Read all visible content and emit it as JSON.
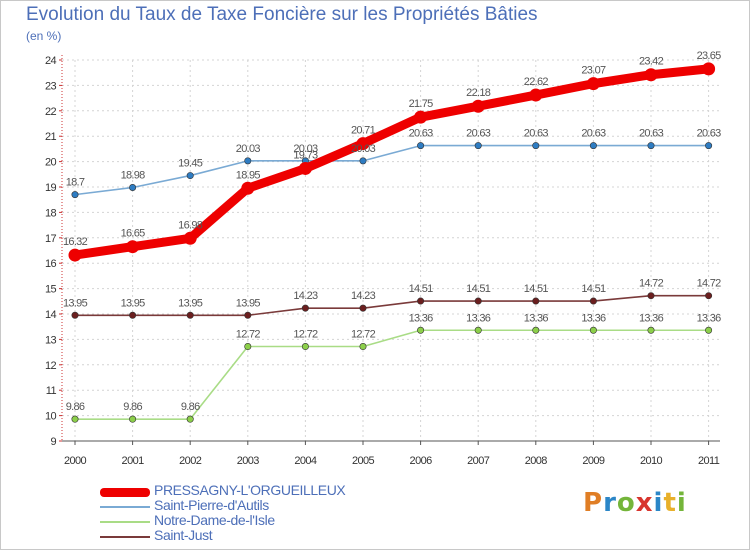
{
  "chart_data": {
    "type": "line",
    "title": "Evolution du Taux de Taxe Foncière sur les Propriétés Bâties",
    "unit_label": "(en %)",
    "x": [
      "2000",
      "2001",
      "2002",
      "2003",
      "2004",
      "2005",
      "2006",
      "2007",
      "2008",
      "2009",
      "2010",
      "2011"
    ],
    "ylim": [
      9,
      24
    ],
    "yticks": [
      "9",
      "10",
      "11",
      "12",
      "13",
      "14",
      "15",
      "16",
      "17",
      "18",
      "19",
      "20",
      "21",
      "22",
      "23",
      "24"
    ],
    "series": [
      {
        "name": "PRESSAGNY-L'ORGUEILLEUX",
        "color": "#ee0000",
        "values": [
          16.32,
          16.65,
          16.98,
          18.95,
          19.73,
          20.71,
          21.75,
          22.18,
          22.62,
          23.07,
          23.42,
          23.65
        ],
        "labels": [
          "16.32",
          "16.65",
          "16.98",
          "18.95",
          "19.73",
          "20.71",
          "21.75",
          "22.18",
          "22.62",
          "23.07",
          "23.42",
          "23.65"
        ]
      },
      {
        "name": "Saint-Pierre-d'Autils",
        "color": "#7aaad4",
        "marker": "#2e7cc2",
        "values": [
          18.7,
          18.98,
          19.45,
          20.03,
          20.03,
          20.03,
          20.63,
          20.63,
          20.63,
          20.63,
          20.63,
          20.63
        ],
        "labels": [
          "18.7",
          "18.98",
          "19.45",
          "20.03",
          "20.03",
          "20.03",
          "20.63",
          "20.63",
          "20.63",
          "20.63",
          "20.63",
          "20.63"
        ]
      },
      {
        "name": "Notre-Dame-de-l'Isle",
        "color": "#a9dc86",
        "marker": "#8ccf4a",
        "values": [
          9.86,
          9.86,
          9.86,
          12.72,
          12.72,
          12.72,
          13.36,
          13.36,
          13.36,
          13.36,
          13.36,
          13.36
        ],
        "labels": [
          "9.86",
          "9.86",
          "9.86",
          "12.72",
          "12.72",
          "12.72",
          "13.36",
          "13.36",
          "13.36",
          "13.36",
          "13.36",
          "13.36"
        ]
      },
      {
        "name": "Saint-Just",
        "color": "#7a3a3a",
        "marker": "#6b1f1f",
        "values": [
          13.95,
          13.95,
          13.95,
          13.95,
          14.23,
          14.23,
          14.51,
          14.51,
          14.51,
          14.51,
          14.72,
          14.72
        ],
        "labels": [
          "13.95",
          "13.95",
          "13.95",
          "13.95",
          "14.23",
          "14.23",
          "14.51",
          "14.51",
          "14.51",
          "14.51",
          "14.72",
          "14.72"
        ]
      }
    ]
  },
  "logo": {
    "p": "P",
    "r": "r",
    "o": "o",
    "x": "x",
    "i": "i",
    "t": "t",
    "i2": "i"
  }
}
